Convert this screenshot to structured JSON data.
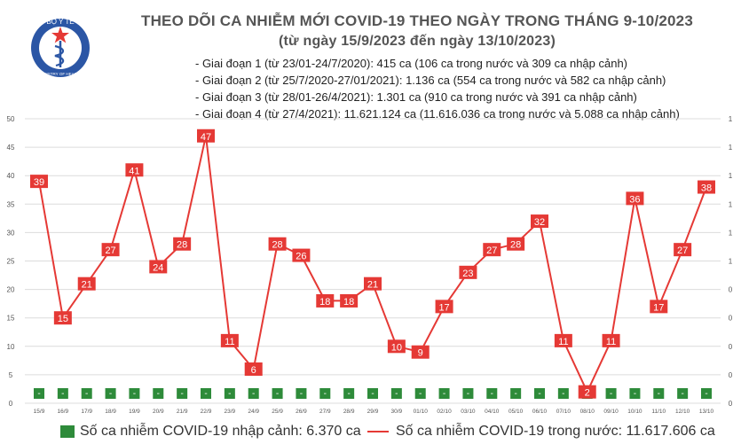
{
  "header": {
    "logo_text_top": "BỘ Y TẾ",
    "logo_text_bottom": "MINISTRY OF HEALTH",
    "title_line1": "THEO DÕI CA NHIỄM MỚI COVID-19 THEO NGÀY TRONG THÁNG 9-10/2023",
    "title_line2": "(từ ngày 15/9/2023 đến ngày 13/10/2023)"
  },
  "periods": [
    "- Giai đoạn 1 (từ 23/01-24/7/2020): 415 ca (106 ca trong nước và 309 ca nhập cảnh)",
    "- Giai đoạn 2 (từ 25/7/2020-27/01/2021): 1.136 ca (554 ca trong nước và 582 ca nhập cảnh)",
    "- Giai đoạn 3 (từ 28/01-26/4/2021): 1.301 ca (910 ca trong nước và 391 ca nhập cảnh)",
    "- Giai đoạn 4 (từ 27/4/2021): 11.621.124 ca (11.616.036 ca trong nước và 5.088 ca nhập cảnh)"
  ],
  "legend": {
    "imported": "Số ca nhiễm COVID-19 nhập cảnh: 6.370 ca",
    "domestic": "Số ca nhiễm COVID-19 trong nước: 11.617.606 ca"
  },
  "colors": {
    "line": "#e53935",
    "label_box": "#e53935",
    "bar": "#2e8b3a",
    "grid": "#dcdcdc"
  },
  "chart_data": {
    "type": "line",
    "categories": [
      "15/9",
      "16/9",
      "17/9",
      "18/9",
      "19/9",
      "20/9",
      "21/9",
      "22/9",
      "23/9",
      "24/9",
      "25/9",
      "26/9",
      "27/9",
      "28/9",
      "29/9",
      "30/9",
      "01/10",
      "02/10",
      "03/10",
      "04/10",
      "05/10",
      "06/10",
      "07/10",
      "08/10",
      "09/10",
      "10/10",
      "11/10",
      "12/10",
      "13/10"
    ],
    "ylim": [
      0,
      50
    ],
    "yticks": [
      0,
      5,
      10,
      15,
      20,
      25,
      30,
      35,
      40,
      45,
      50
    ],
    "ytick_labels": [
      "0",
      "5",
      "10",
      "15",
      "20",
      "25",
      "30",
      "35",
      "40",
      "45",
      "50"
    ],
    "right_axis_tick_labels": [
      "0",
      "0",
      "0",
      "0",
      "0",
      "1",
      "1",
      "1",
      "1",
      "1",
      "1"
    ],
    "grid": true,
    "series": [
      {
        "name": "Số ca nhiễm COVID-19 trong nước",
        "type": "line",
        "values": [
          39,
          15,
          21,
          27,
          41,
          24,
          28,
          47,
          11,
          6,
          28,
          26,
          18,
          18,
          21,
          10,
          9,
          17,
          23,
          27,
          28,
          32,
          11,
          2,
          11,
          36,
          17,
          27,
          38
        ]
      },
      {
        "name": "Số ca nhiễm COVID-19 nhập cảnh",
        "type": "bar",
        "values": [
          0,
          0,
          0,
          0,
          0,
          0,
          0,
          0,
          0,
          0,
          0,
          0,
          0,
          0,
          0,
          0,
          0,
          0,
          0,
          0,
          0,
          0,
          0,
          0,
          0,
          0,
          0,
          0,
          0
        ],
        "bar_labels": [
          "-",
          "-",
          "-",
          "-",
          "-",
          "-",
          "-",
          "-",
          "-",
          "-",
          "-",
          "-",
          "-",
          "-",
          "-",
          "-",
          "-",
          "-",
          "-",
          "-",
          "-",
          "-",
          "-",
          "-",
          "-",
          "-",
          "-",
          "-",
          "-"
        ]
      }
    ]
  }
}
